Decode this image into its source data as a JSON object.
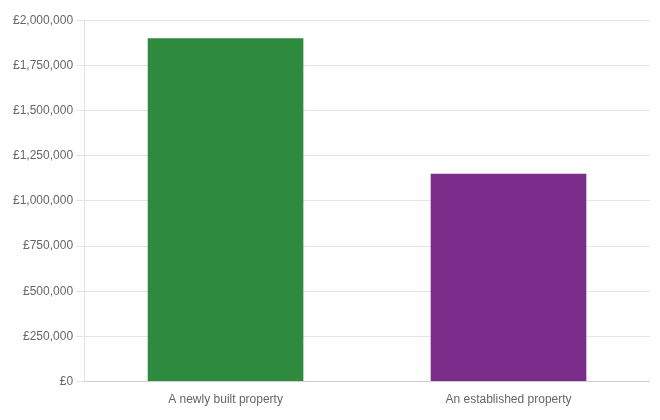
{
  "chart_data": {
    "type": "bar",
    "categories": [
      "A newly built property",
      "An established property"
    ],
    "values": [
      1900000,
      1150000
    ],
    "colors": [
      "#2e8b3e",
      "#7b2d8b"
    ],
    "ylim": [
      0,
      2000000
    ],
    "yticks": [
      {
        "value": 0,
        "label": "£0"
      },
      {
        "value": 250000,
        "label": "£250,000"
      },
      {
        "value": 500000,
        "label": "£500,000"
      },
      {
        "value": 750000,
        "label": "£750,000"
      },
      {
        "value": 1000000,
        "label": "£1,000,000"
      },
      {
        "value": 1250000,
        "label": "£1,250,000"
      },
      {
        "value": 1500000,
        "label": "£1,500,000"
      },
      {
        "value": 1750000,
        "label": "£1,750,000"
      },
      {
        "value": 2000000,
        "label": "£2,000,000"
      }
    ],
    "grid": true
  }
}
